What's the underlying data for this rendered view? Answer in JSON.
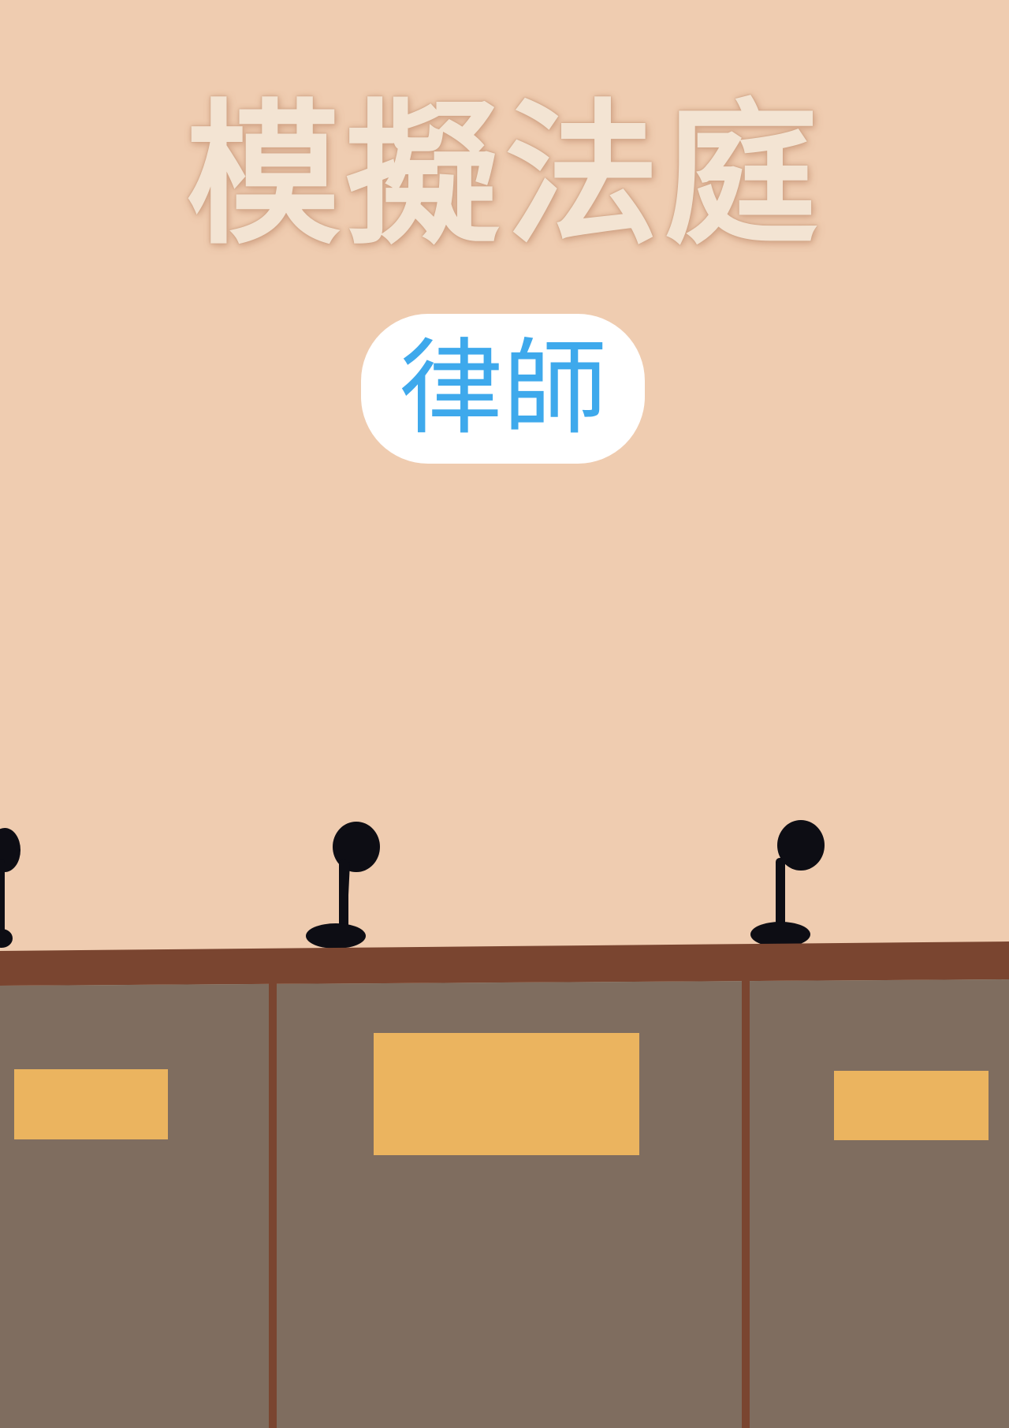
{
  "poster": {
    "title": "模擬法庭",
    "role": "律師"
  },
  "colors": {
    "wall": "#efccb0",
    "title_fill": "#f3e4d3",
    "role_text": "#3ea9ec",
    "role_badge": "#ffffff",
    "desk_top": "#7a4530",
    "desk_panel": "#7f6d5f",
    "desk_divider": "#7a4530",
    "name_plate": "#ebb45f",
    "microphone": "#0d0d14"
  },
  "scene": {
    "microphones": 3,
    "desk_panels": 3,
    "name_plates": 3
  }
}
